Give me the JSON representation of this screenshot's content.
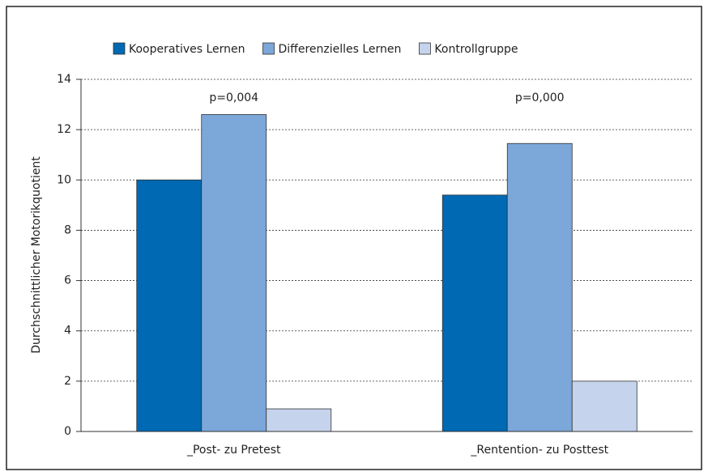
{
  "chart_data": {
    "type": "bar",
    "y_label": "Durchschnittlicher Motorikquotient",
    "categories": [
      "_Post- zu Pretest",
      "_Rentention- zu Posttest"
    ],
    "series": [
      {
        "name": "Kooperatives Lernen",
        "color": "#0069b4",
        "values": [
          10.0,
          9.4
        ]
      },
      {
        "name": "Differenzielles Lernen",
        "color": "#7ba7d9",
        "values": [
          12.6,
          11.45
        ]
      },
      {
        "name": "Kontrollgruppe",
        "color": "#c5d3ec",
        "values": [
          0.9,
          2.0
        ]
      }
    ],
    "annotations": [
      "p=0,004",
      "p=0,000"
    ],
    "ylim": [
      0,
      14
    ],
    "yticks": [
      0,
      2,
      4,
      6,
      8,
      10,
      12,
      14
    ],
    "grid": true,
    "legend": "top"
  }
}
